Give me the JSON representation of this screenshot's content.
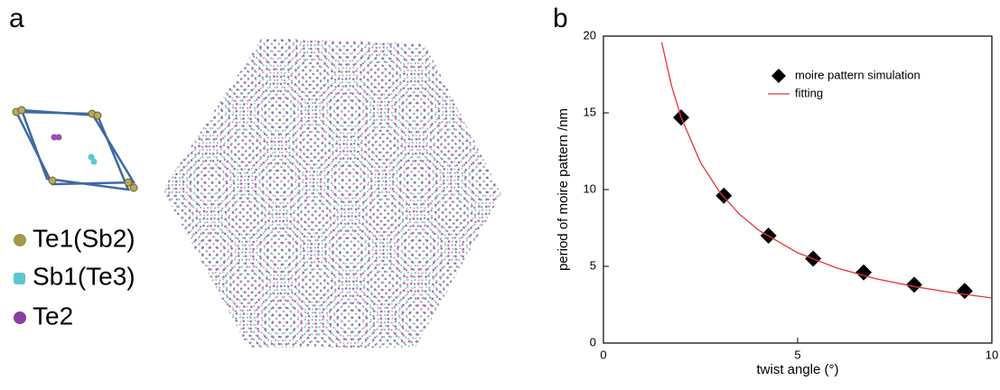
{
  "panel_a": {
    "label": "a",
    "legend": [
      "Te1(Sb2)",
      "Sb1(Te3)",
      "Te2"
    ]
  },
  "chart_data": {
    "type": "scatter",
    "label": "b",
    "xlabel": "twist angle (°)",
    "ylabel": "period of moire pattern /nm",
    "xlim": [
      0,
      10
    ],
    "ylim": [
      0,
      20
    ],
    "xticks": [
      0,
      5,
      10
    ],
    "yticks": [
      0,
      5,
      10,
      15,
      20
    ],
    "series": [
      {
        "name": "moire pattern simulation",
        "color": "#000000",
        "marker": "diamond",
        "x": [
          2.0,
          3.1,
          4.25,
          5.4,
          6.7,
          8.0,
          9.3
        ],
        "values": [
          14.7,
          9.6,
          7.0,
          5.5,
          4.6,
          3.8,
          3.4
        ]
      },
      {
        "name": "fitting",
        "color": "#e8343a",
        "marker": "line",
        "x": [
          1.5,
          1.75,
          2,
          2.5,
          3,
          3.5,
          4,
          5,
          6,
          7,
          8,
          9,
          10
        ],
        "values": [
          19.6,
          16.8,
          14.7,
          11.76,
          9.8,
          8.4,
          7.35,
          5.88,
          4.9,
          4.2,
          3.68,
          3.27,
          2.94
        ]
      }
    ]
  }
}
